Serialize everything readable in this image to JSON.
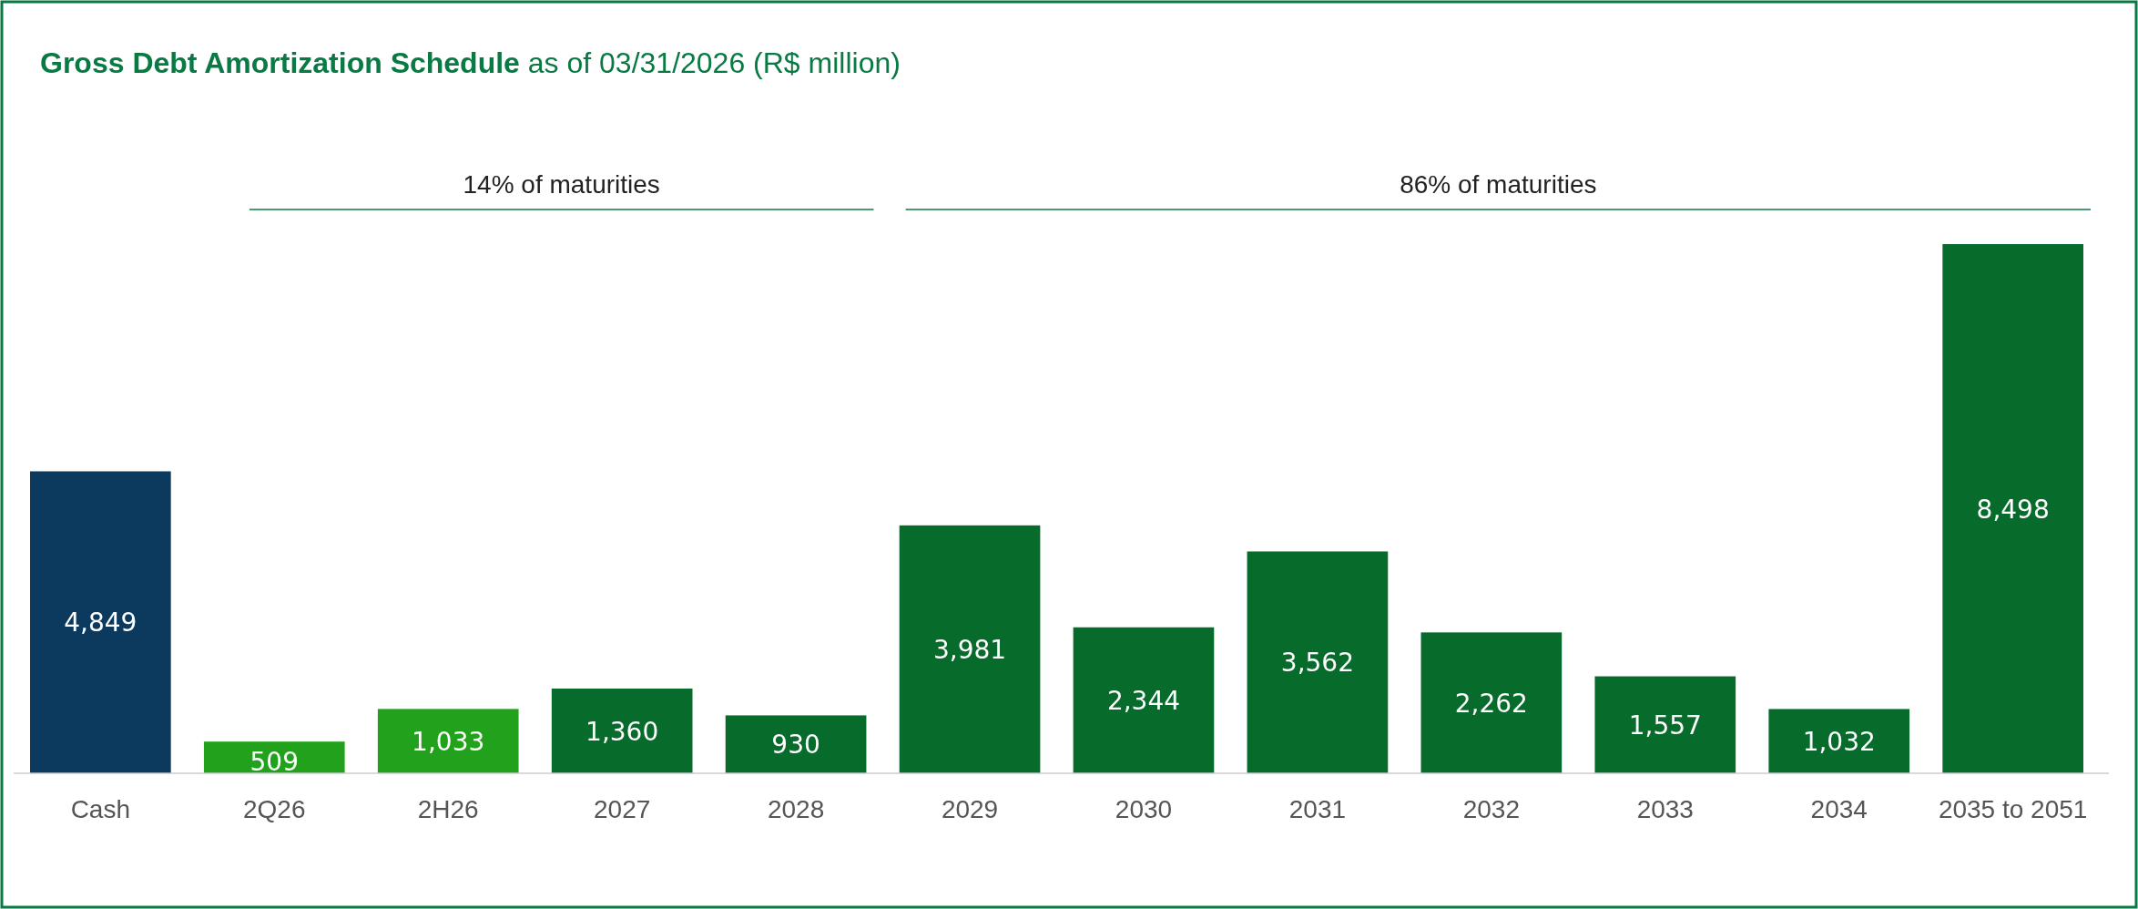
{
  "chart_data": {
    "type": "bar",
    "title": "Gross Debt Amortization Schedule",
    "subtitle": "as of 03/31/2026 (R$ million)",
    "categories": [
      "Cash",
      "2Q26",
      "2H26",
      "2027",
      "2028",
      "2029",
      "2030",
      "2031",
      "2032",
      "2033",
      "2034",
      "2035 to 2051"
    ],
    "values": [
      4849,
      509,
      1033,
      1360,
      930,
      3981,
      2344,
      3562,
      2262,
      1557,
      1032,
      8498
    ],
    "colors": [
      "#0b3a5e",
      "#22a21c",
      "#22a21c",
      "#076b2c",
      "#076b2c",
      "#076b2c",
      "#076b2c",
      "#076b2c",
      "#076b2c",
      "#076b2c",
      "#076b2c",
      "#076b2c"
    ],
    "value_labels": [
      "4,849",
      "509",
      "1,033",
      "1,360",
      "930",
      "3,981",
      "2,344",
      "3,562",
      "2,262",
      "1,557",
      "1,032",
      "8,498"
    ],
    "annotations": [
      "14% of maturities",
      "86% of maturities"
    ]
  }
}
